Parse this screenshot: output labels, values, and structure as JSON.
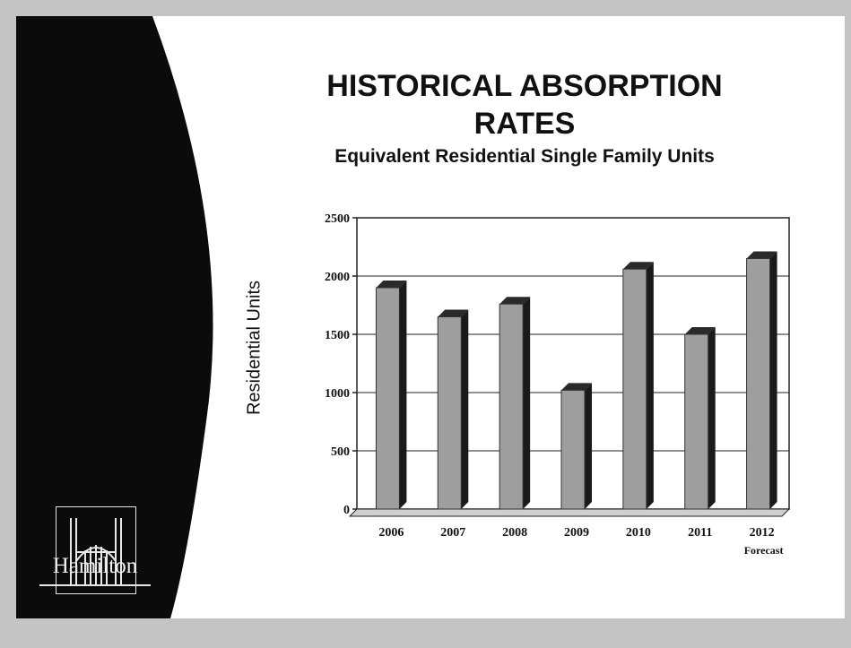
{
  "slide": {
    "title_line1": "HISTORICAL ABSORPTION",
    "title_line2": "RATES",
    "subtitle": "Equivalent Residential Single Family Units",
    "logo_text": "Hamilton"
  },
  "chart_data": {
    "type": "bar",
    "categories": [
      "2006",
      "2007",
      "2008",
      "2009",
      "2010",
      "2011",
      "2012"
    ],
    "values": [
      1900,
      1650,
      1760,
      1020,
      2060,
      1500,
      2150
    ],
    "ylabel": "Residential Units",
    "ylim": [
      0,
      2500
    ],
    "yticks": [
      "0",
      "500",
      "1000",
      "1500",
      "2000",
      "2500"
    ],
    "annotation": "Forecast",
    "grid": true,
    "bar_color": "#9e9e9e"
  }
}
